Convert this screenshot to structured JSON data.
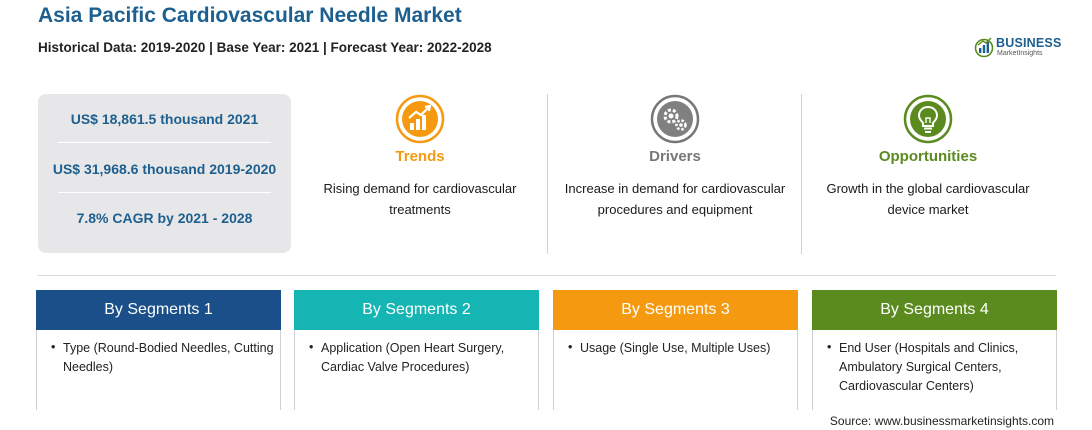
{
  "header": {
    "title": "Asia Pacific Cardiovascular Needle Market",
    "subtitle": "Historical Data: 2019-2020 | Base Year: 2021 | Forecast Year: 2022-2028"
  },
  "logo": {
    "name": "BUSINESS",
    "sub": "MarketInsights"
  },
  "stats": [
    "US$ 18,861.5 thousand 2021",
    "US$ 31,968.6 thousand 2019-2020",
    "7.8% CAGR by 2021 - 2028"
  ],
  "columns": [
    {
      "title": "Trends",
      "text": "Rising demand for cardiovascular treatments",
      "color": "#f59a10",
      "icon": "trend-chart-icon"
    },
    {
      "title": "Drivers",
      "text": "Increase in demand for cardiovascular procedures and equipment",
      "color": "#777777",
      "icon": "gears-icon"
    },
    {
      "title": "Opportunities",
      "text": "Growth in the global cardiovascular device market",
      "color": "#5b8a1f",
      "icon": "lightbulb-icon"
    }
  ],
  "segments": [
    {
      "title": "By Segments 1",
      "color": "#1b4f8a",
      "text": "Type (Round-Bodied Needles, Cutting Needles)"
    },
    {
      "title": "By Segments 2",
      "color": "#14b5b3",
      "text": "Application (Open Heart Surgery, Cardiac Valve Procedures)"
    },
    {
      "title": "By Segments 3",
      "color": "#f59a10",
      "text": "Usage (Single Use, Multiple Uses)"
    },
    {
      "title": "By Segments 4",
      "color": "#5b8a1f",
      "text": "End User (Hospitals and Clinics, Ambulatory Surgical Centers, Cardiovascular Centers)"
    }
  ],
  "source": "Source: www.businessmarketinsights.com"
}
